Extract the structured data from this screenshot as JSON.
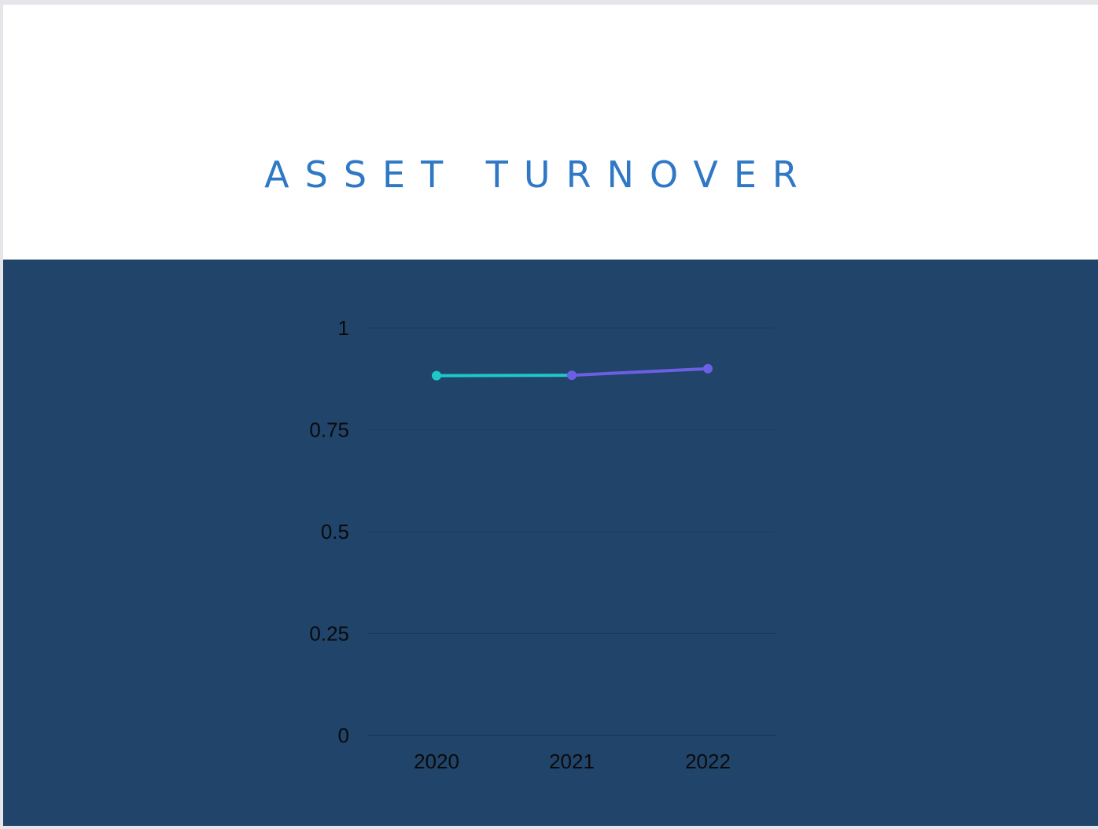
{
  "chart_data": {
    "type": "line",
    "title": "ASSET TURNOVER",
    "x": [
      "2020",
      "2021",
      "2022"
    ],
    "series": [
      {
        "values": [
          0.883,
          0.884,
          0.9
        ],
        "segment_colors": [
          "#1fc8c8",
          "#6c5fe4"
        ]
      }
    ],
    "yticks": [
      "0",
      "0.25",
      "0.5",
      "0.75",
      "1"
    ],
    "ylim": [
      0,
      1
    ],
    "grid": true,
    "background": "#21446a",
    "title_color": "#2e78c6"
  }
}
